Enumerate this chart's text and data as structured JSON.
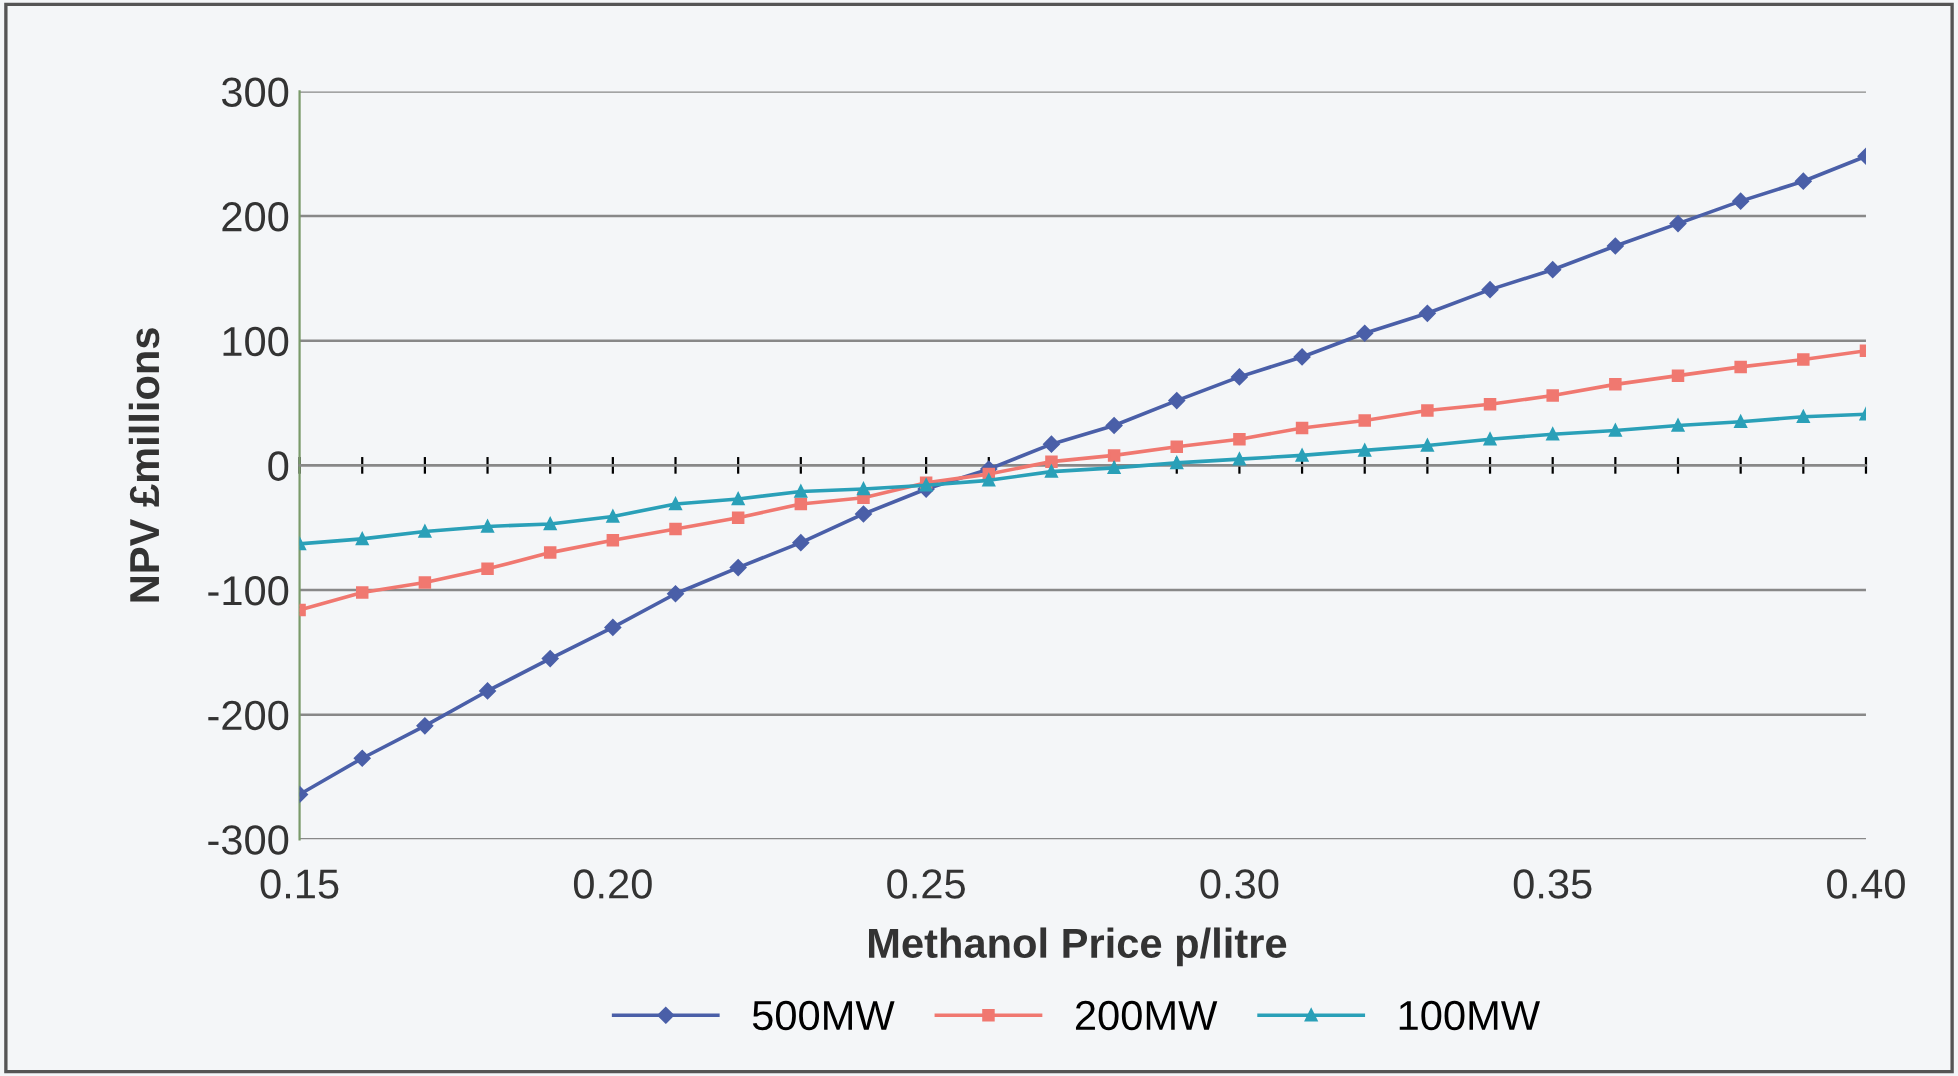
{
  "chart_data": {
    "type": "line",
    "xlabel": "Methanol Price p/litre",
    "ylabel": "NPV £millions",
    "x": [
      0.15,
      0.16,
      0.17,
      0.18,
      0.19,
      0.2,
      0.21,
      0.22,
      0.23,
      0.24,
      0.25,
      0.26,
      0.27,
      0.28,
      0.29,
      0.3,
      0.31,
      0.32,
      0.33,
      0.34,
      0.35,
      0.36,
      0.37,
      0.38,
      0.39,
      0.4
    ],
    "series": [
      {
        "name": "500MW",
        "color": "#4a5fa8",
        "marker": "diamond",
        "values": [
          -264,
          -235,
          -209,
          -181,
          -155,
          -130,
          -103,
          -82,
          -62,
          -39,
          -19,
          -3,
          17,
          32,
          52,
          71,
          87,
          106,
          122,
          141,
          157,
          176,
          194,
          212,
          228,
          248
        ]
      },
      {
        "name": "200MW",
        "color": "#f07870",
        "marker": "square",
        "values": [
          -116,
          -102,
          -94,
          -83,
          -70,
          -60,
          -51,
          -42,
          -31,
          -26,
          -14,
          -7,
          3,
          8,
          15,
          21,
          30,
          36,
          44,
          49,
          56,
          65,
          72,
          79,
          85,
          92
        ]
      },
      {
        "name": "100MW",
        "color": "#2aa0b8",
        "marker": "triangle",
        "values": [
          -63,
          -59,
          -53,
          -49,
          -47,
          -41,
          -31,
          -27,
          -21,
          -19,
          -16,
          -12,
          -5,
          -2,
          2,
          5,
          8,
          12,
          16,
          21,
          25,
          28,
          32,
          35,
          39,
          41
        ]
      }
    ],
    "xlim": [
      0.15,
      0.4
    ],
    "xticks": [
      {
        "value": 0.15,
        "label": "0.15"
      },
      {
        "value": 0.16,
        "label": null
      },
      {
        "value": 0.17,
        "label": null
      },
      {
        "value": 0.18,
        "label": null
      },
      {
        "value": 0.19,
        "label": null
      },
      {
        "value": 0.2,
        "label": "0.20"
      },
      {
        "value": 0.21,
        "label": null
      },
      {
        "value": 0.22,
        "label": null
      },
      {
        "value": 0.23,
        "label": null
      },
      {
        "value": 0.24,
        "label": null
      },
      {
        "value": 0.25,
        "label": "0.25"
      },
      {
        "value": 0.26,
        "label": null
      },
      {
        "value": 0.27,
        "label": null
      },
      {
        "value": 0.28,
        "label": null
      },
      {
        "value": 0.29,
        "label": null
      },
      {
        "value": 0.3,
        "label": "0.30"
      },
      {
        "value": 0.31,
        "label": null
      },
      {
        "value": 0.32,
        "label": null
      },
      {
        "value": 0.33,
        "label": null
      },
      {
        "value": 0.34,
        "label": null
      },
      {
        "value": 0.35,
        "label": "0.35"
      },
      {
        "value": 0.36,
        "label": null
      },
      {
        "value": 0.37,
        "label": null
      },
      {
        "value": 0.38,
        "label": null
      },
      {
        "value": 0.39,
        "label": null
      },
      {
        "value": 0.4,
        "label": "0.40"
      }
    ],
    "ylim": [
      -300,
      300
    ],
    "yticks": [
      -300,
      -200,
      -100,
      0,
      100,
      200,
      300
    ],
    "grid": "y",
    "legend": "bottom",
    "line_style": "solid"
  }
}
